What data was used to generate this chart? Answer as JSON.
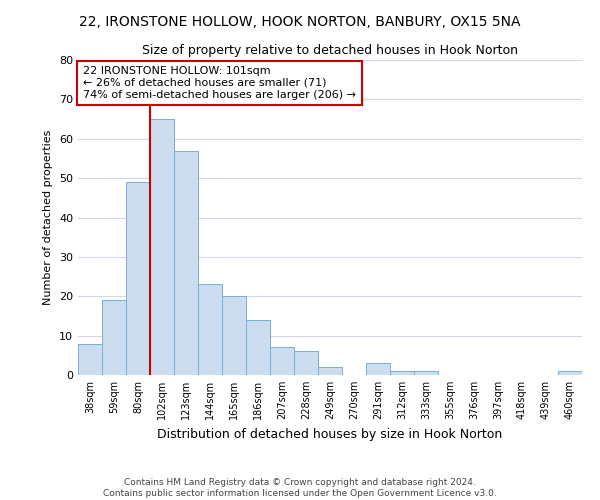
{
  "title_line1": "22, IRONSTONE HOLLOW, HOOK NORTON, BANBURY, OX15 5NA",
  "title_line2": "Size of property relative to detached houses in Hook Norton",
  "xlabel": "Distribution of detached houses by size in Hook Norton",
  "ylabel": "Number of detached properties",
  "categories": [
    "38sqm",
    "59sqm",
    "80sqm",
    "102sqm",
    "123sqm",
    "144sqm",
    "165sqm",
    "186sqm",
    "207sqm",
    "228sqm",
    "249sqm",
    "270sqm",
    "291sqm",
    "312sqm",
    "333sqm",
    "355sqm",
    "376sqm",
    "397sqm",
    "418sqm",
    "439sqm",
    "460sqm"
  ],
  "values": [
    8,
    19,
    49,
    65,
    57,
    23,
    20,
    14,
    7,
    6,
    2,
    0,
    3,
    1,
    1,
    0,
    0,
    0,
    0,
    0,
    1
  ],
  "bar_color": "#ccddf0",
  "bar_edge_color": "#7aaed4",
  "background_color": "#ffffff",
  "grid_color": "#d0d8e8",
  "vline_color": "#cc0000",
  "annotation_text": "22 IRONSTONE HOLLOW: 101sqm\n← 26% of detached houses are smaller (71)\n74% of semi-detached houses are larger (206) →",
  "annotation_box_color": "#ffffff",
  "annotation_box_edge_color": "#cc0000",
  "footer_line1": "Contains HM Land Registry data © Crown copyright and database right 2024.",
  "footer_line2": "Contains public sector information licensed under the Open Government Licence v3.0.",
  "ylim": [
    0,
    80
  ],
  "yticks": [
    0,
    10,
    20,
    30,
    40,
    50,
    60,
    70,
    80
  ]
}
